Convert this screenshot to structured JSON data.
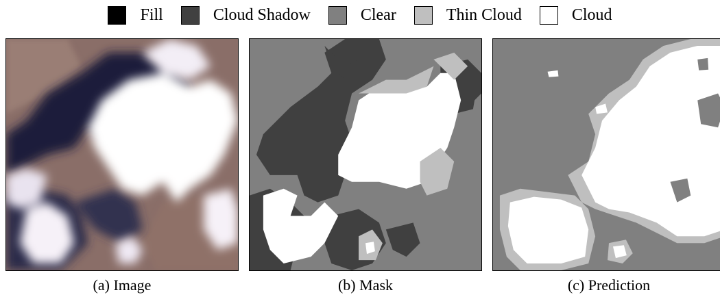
{
  "legend": {
    "items": [
      {
        "label": "Fill",
        "color": "#000000"
      },
      {
        "label": "Cloud Shadow",
        "color": "#404040"
      },
      {
        "label": "Clear",
        "color": "#808080"
      },
      {
        "label": "Thin Cloud",
        "color": "#bfbfbf"
      },
      {
        "label": "Cloud",
        "color": "#ffffff"
      }
    ]
  },
  "panels": [
    {
      "caption": "(a) Image"
    },
    {
      "caption": "(b) Mask"
    },
    {
      "caption": "(c) Prediction"
    }
  ]
}
